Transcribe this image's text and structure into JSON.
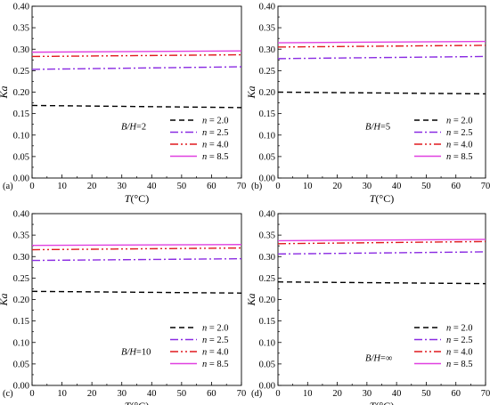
{
  "chart_data": [
    {
      "type": "line",
      "panel_label": "(a)",
      "annotation": {
        "var": "B/H",
        "value": "=2"
      },
      "xlabel": {
        "var": "T",
        "unit": "(°C)"
      },
      "ylabel": "Ka",
      "xlim": [
        0,
        70
      ],
      "ylim": [
        0,
        0.4
      ],
      "xticks": [
        "0",
        "10",
        "20",
        "30",
        "40",
        "50",
        "60",
        "70"
      ],
      "yticks": [
        "0.00",
        "0.05",
        "0.10",
        "0.15",
        "0.20",
        "0.25",
        "0.30",
        "0.35",
        "0.40"
      ],
      "series": [
        {
          "name": "2.0",
          "color": "#000000",
          "dash": "dash",
          "x": [
            0,
            70
          ],
          "y": [
            0.169,
            0.164
          ]
        },
        {
          "name": "2.5",
          "color": "#8a2be2",
          "dash": "dashdot",
          "x": [
            0,
            70
          ],
          "y": [
            0.253,
            0.259
          ]
        },
        {
          "name": "4.0",
          "color": "#e0191f",
          "dash": "dashdotdot",
          "x": [
            0,
            70
          ],
          "y": [
            0.283,
            0.287
          ]
        },
        {
          "name": "8.5",
          "color": "#e040e0",
          "dash": "solid",
          "x": [
            0,
            70
          ],
          "y": [
            0.293,
            0.296
          ]
        }
      ]
    },
    {
      "type": "line",
      "panel_label": "(b)",
      "annotation": {
        "var": "B/H",
        "value": "=5"
      },
      "xlabel": {
        "var": "T",
        "unit": "(°C)"
      },
      "ylabel": "Ka",
      "xlim": [
        0,
        70
      ],
      "ylim": [
        0,
        0.4
      ],
      "xticks": [
        "0",
        "10",
        "20",
        "30",
        "40",
        "50",
        "60",
        "70"
      ],
      "yticks": [
        "0.00",
        "0.05",
        "0.10",
        "0.15",
        "0.20",
        "0.25",
        "0.30",
        "0.35",
        "0.40"
      ],
      "series": [
        {
          "name": "2.0",
          "color": "#000000",
          "dash": "dash",
          "x": [
            0,
            70
          ],
          "y": [
            0.2,
            0.196
          ]
        },
        {
          "name": "2.5",
          "color": "#8a2be2",
          "dash": "dashdot",
          "x": [
            0,
            70
          ],
          "y": [
            0.278,
            0.283
          ]
        },
        {
          "name": "4.0",
          "color": "#e0191f",
          "dash": "dashdotdot",
          "x": [
            0,
            70
          ],
          "y": [
            0.305,
            0.309
          ]
        },
        {
          "name": "8.5",
          "color": "#e040e0",
          "dash": "solid",
          "x": [
            0,
            70
          ],
          "y": [
            0.315,
            0.318
          ]
        }
      ]
    },
    {
      "type": "line",
      "panel_label": "(c)",
      "annotation": {
        "var": "B/H",
        "value": "=10"
      },
      "xlabel": {
        "var": "T",
        "unit": "(°C)"
      },
      "ylabel": "Ka",
      "xlim": [
        0,
        70
      ],
      "ylim": [
        0,
        0.4
      ],
      "xticks": [
        "0",
        "10",
        "20",
        "30",
        "40",
        "50",
        "60",
        "70"
      ],
      "yticks": [
        "0.00",
        "0.05",
        "0.10",
        "0.15",
        "0.20",
        "0.25",
        "0.30",
        "0.35",
        "0.40"
      ],
      "series": [
        {
          "name": "2.0",
          "color": "#000000",
          "dash": "dash",
          "x": [
            0,
            70
          ],
          "y": [
            0.219,
            0.215
          ]
        },
        {
          "name": "2.5",
          "color": "#8a2be2",
          "dash": "dashdot",
          "x": [
            0,
            70
          ],
          "y": [
            0.291,
            0.295
          ]
        },
        {
          "name": "4.0",
          "color": "#e0191f",
          "dash": "dashdotdot",
          "x": [
            0,
            70
          ],
          "y": [
            0.316,
            0.32
          ]
        },
        {
          "name": "8.5",
          "color": "#e040e0",
          "dash": "solid",
          "x": [
            0,
            70
          ],
          "y": [
            0.326,
            0.328
          ]
        }
      ]
    },
    {
      "type": "line",
      "panel_label": "(d)",
      "annotation": {
        "var": "B/H",
        "value": "=∞"
      },
      "xlabel": {
        "var": "T",
        "unit": "(°C)"
      },
      "ylabel": "Ka",
      "xlim": [
        0,
        70
      ],
      "ylim": [
        0,
        0.4
      ],
      "xticks": [
        "0",
        "10",
        "20",
        "30",
        "40",
        "50",
        "60",
        "70"
      ],
      "yticks": [
        "0.00",
        "0.05",
        "0.10",
        "0.15",
        "0.20",
        "0.25",
        "0.30",
        "0.35",
        "0.40"
      ],
      "series": [
        {
          "name": "2.0",
          "color": "#000000",
          "dash": "dash",
          "x": [
            0,
            70
          ],
          "y": [
            0.241,
            0.237
          ]
        },
        {
          "name": "2.5",
          "color": "#8a2be2",
          "dash": "dashdot",
          "x": [
            0,
            70
          ],
          "y": [
            0.306,
            0.311
          ]
        },
        {
          "name": "4.0",
          "color": "#e0191f",
          "dash": "dashdotdot",
          "x": [
            0,
            70
          ],
          "y": [
            0.33,
            0.335
          ]
        },
        {
          "name": "8.5",
          "color": "#e040e0",
          "dash": "solid",
          "x": [
            0,
            70
          ],
          "y": [
            0.337,
            0.34
          ]
        }
      ]
    }
  ]
}
